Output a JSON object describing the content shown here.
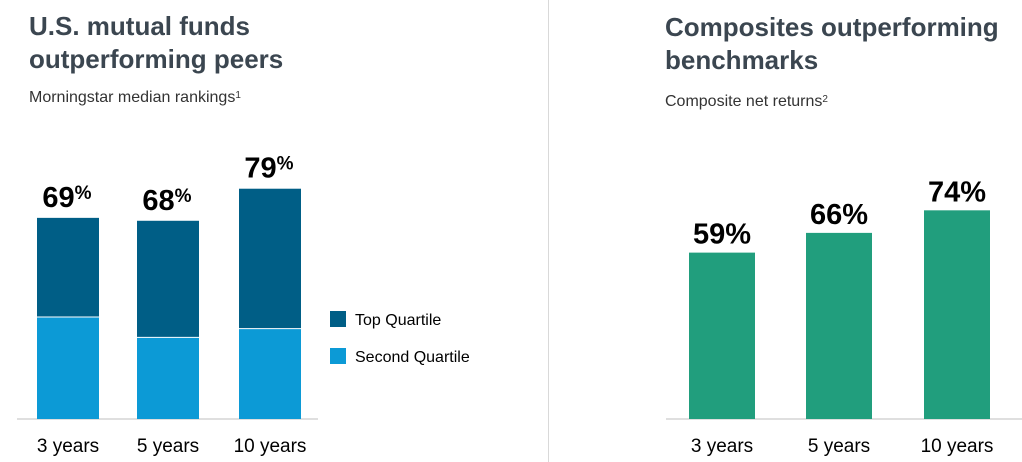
{
  "colors": {
    "top_quartile": "#005E86",
    "second_quartile": "#0C9AD6",
    "composite_bar": "#219E7D",
    "axis": "#bfbfbf",
    "title": "#3b4650"
  },
  "chart_data": [
    {
      "type": "bar",
      "stacked": true,
      "title": "U.S. mutual funds outperforming peers",
      "subtitle": "Morningstar median rankings",
      "subtitle_note": "1",
      "categories": [
        "3 years",
        "5 years",
        "10 years"
      ],
      "series": [
        {
          "name": "Second Quartile",
          "values": [
            35,
            28,
            31
          ]
        },
        {
          "name": "Top Quartile",
          "values": [
            34,
            40,
            48
          ]
        }
      ],
      "totals": [
        69,
        68,
        79
      ],
      "total_labels": [
        {
          "number": "69",
          "suffix": "%"
        },
        {
          "number": "68",
          "suffix": "%"
        },
        {
          "number": "79",
          "suffix": "%"
        }
      ],
      "legend": [
        "Top Quartile",
        "Second Quartile"
      ],
      "legend_position": "right",
      "ylim": [
        0,
        100
      ],
      "grid": false
    },
    {
      "type": "bar",
      "title": "Composites outperforming benchmarks",
      "subtitle": "Composite net returns",
      "subtitle_note": "2",
      "categories": [
        "3 years",
        "5 years",
        "10 years"
      ],
      "values": [
        59,
        66,
        74
      ],
      "value_labels": [
        "59%",
        "66%",
        "74%"
      ],
      "ylim": [
        0,
        100
      ],
      "grid": false
    }
  ]
}
